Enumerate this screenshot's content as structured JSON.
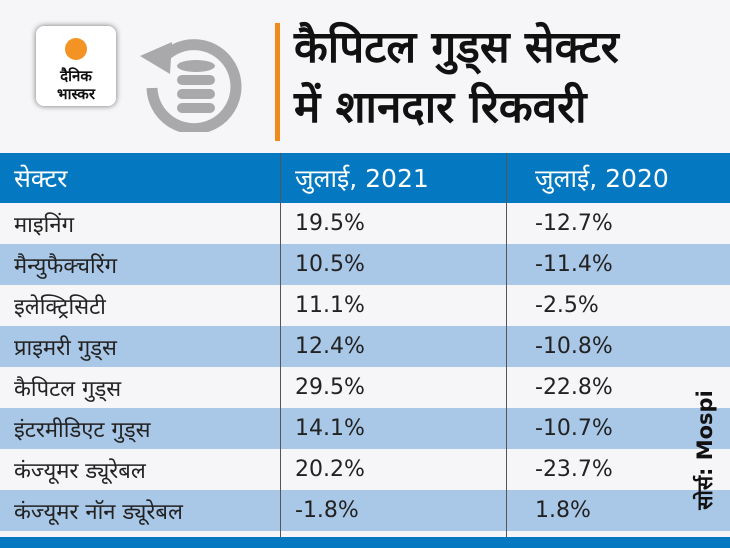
{
  "logo": {
    "line1": "दैनिक",
    "line2": "भास्कर",
    "sun_color": "#f39323"
  },
  "title": {
    "line1": "कैपिटल गुड्स सेक्टर",
    "line2": "में शानदार रिकवरी"
  },
  "table": {
    "headers": [
      "सेक्टर",
      "जुलाई, 2021",
      "जुलाई, 2020"
    ],
    "rows": [
      [
        "माइनिंग",
        "19.5%",
        "-12.7%"
      ],
      [
        "मैन्युफैक्चरिंग",
        "10.5%",
        "-11.4%"
      ],
      [
        "इलेक्ट्रिसिटी",
        "11.1%",
        "-2.5%"
      ],
      [
        "प्राइमरी गुड्स",
        "12.4%",
        "-10.8%"
      ],
      [
        "कैपिटल गुड्स",
        "29.5%",
        "-22.8%"
      ],
      [
        "इंटरमीडिएट गुड्स",
        "14.1%",
        "-10.7%"
      ],
      [
        "कंज्यूमर ड्यूरेबल",
        "20.2%",
        "-23.7%"
      ],
      [
        "कंज्यूमर नॉन ड्यूरेबल",
        "-1.8%",
        "1.8%"
      ]
    ]
  },
  "source": "सोर्स: Mospi",
  "colors": {
    "header_blue": "#0479c2",
    "stripe_blue": "#a9c7e7",
    "accent_orange": "#f08a1c"
  }
}
